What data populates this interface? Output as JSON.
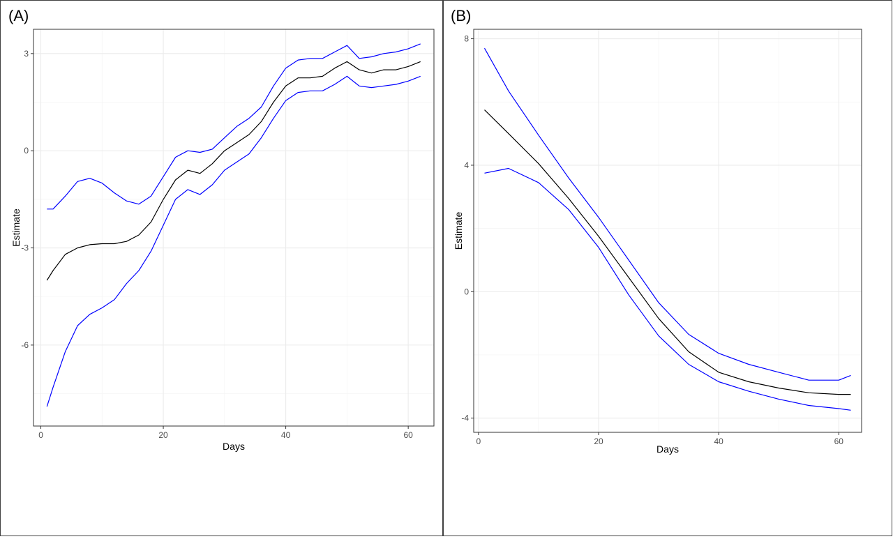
{
  "chart_data": [
    {
      "type": "line",
      "panel_label": "(A)",
      "xlabel": "Days",
      "ylabel": "Estimate",
      "xlim": [
        -1.2,
        64.2
      ],
      "ylim": [
        -8.5,
        3.75
      ],
      "x_ticks": [
        0,
        20,
        40,
        60
      ],
      "y_ticks": [
        -6,
        -3,
        0,
        3
      ],
      "grid": true,
      "series": [
        {
          "role": "estimate",
          "color": "#000000",
          "x": [
            1,
            2,
            4,
            6,
            8,
            10,
            12,
            14,
            16,
            18,
            20,
            22,
            24,
            26,
            28,
            30,
            32,
            34,
            36,
            38,
            40,
            42,
            44,
            46,
            48,
            50,
            52,
            54,
            56,
            58,
            60,
            62
          ],
          "y": [
            -4.0,
            -3.7,
            -3.2,
            -3.0,
            -2.9,
            -2.87,
            -2.87,
            -2.8,
            -2.6,
            -2.2,
            -1.5,
            -0.9,
            -0.6,
            -0.7,
            -0.4,
            0.0,
            0.25,
            0.5,
            0.9,
            1.5,
            2.0,
            2.25,
            2.25,
            2.3,
            2.55,
            2.75,
            2.5,
            2.4,
            2.5,
            2.5,
            2.6,
            2.75
          ]
        },
        {
          "role": "upper-bound",
          "color": "#0000ff",
          "x": [
            1,
            2,
            4,
            6,
            8,
            10,
            12,
            14,
            16,
            18,
            20,
            22,
            24,
            26,
            28,
            30,
            32,
            34,
            36,
            38,
            40,
            42,
            44,
            46,
            48,
            50,
            52,
            54,
            56,
            58,
            60,
            62
          ],
          "y": [
            -1.8,
            -1.8,
            -1.4,
            -0.95,
            -0.85,
            -1.0,
            -1.3,
            -1.55,
            -1.65,
            -1.4,
            -0.8,
            -0.2,
            0.0,
            -0.05,
            0.05,
            0.4,
            0.75,
            1.0,
            1.35,
            2.0,
            2.55,
            2.8,
            2.85,
            2.85,
            3.05,
            3.25,
            2.85,
            2.9,
            3.0,
            3.05,
            3.15,
            3.3
          ]
        },
        {
          "role": "lower-bound",
          "color": "#0000ff",
          "x": [
            1,
            2,
            4,
            6,
            8,
            10,
            12,
            14,
            16,
            18,
            20,
            22,
            24,
            26,
            28,
            30,
            32,
            34,
            36,
            38,
            40,
            42,
            44,
            46,
            48,
            50,
            52,
            54,
            56,
            58,
            60,
            62
          ],
          "y": [
            -7.9,
            -7.3,
            -6.2,
            -5.4,
            -5.05,
            -4.85,
            -4.6,
            -4.1,
            -3.7,
            -3.1,
            -2.3,
            -1.5,
            -1.2,
            -1.35,
            -1.05,
            -0.6,
            -0.35,
            -0.1,
            0.4,
            1.0,
            1.55,
            1.8,
            1.85,
            1.85,
            2.05,
            2.3,
            2.0,
            1.95,
            2.0,
            2.05,
            2.15,
            2.3
          ]
        }
      ]
    },
    {
      "type": "line",
      "panel_label": "(B)",
      "xlabel": "Days",
      "ylabel": "Estimate",
      "xlim": [
        -0.8,
        63.8
      ],
      "ylim": [
        -4.45,
        8.3
      ],
      "x_ticks": [
        0,
        20,
        40,
        60
      ],
      "y_ticks": [
        -4,
        0,
        4,
        8
      ],
      "grid": true,
      "series": [
        {
          "role": "estimate",
          "color": "#000000",
          "x": [
            1,
            5,
            10,
            15,
            20,
            25,
            30,
            35,
            40,
            45,
            50,
            55,
            60,
            62
          ],
          "y": [
            5.75,
            5.0,
            4.05,
            2.95,
            1.75,
            0.45,
            -0.85,
            -1.9,
            -2.55,
            -2.85,
            -3.05,
            -3.2,
            -3.25,
            -3.25
          ]
        },
        {
          "role": "upper-bound",
          "color": "#0000ff",
          "x": [
            1,
            5,
            10,
            15,
            20,
            25,
            30,
            35,
            40,
            45,
            50,
            55,
            60,
            62
          ],
          "y": [
            7.7,
            6.35,
            4.95,
            3.6,
            2.35,
            1.0,
            -0.35,
            -1.35,
            -1.95,
            -2.3,
            -2.55,
            -2.8,
            -2.8,
            -2.65
          ]
        },
        {
          "role": "lower-bound",
          "color": "#0000ff",
          "x": [
            1,
            5,
            10,
            15,
            20,
            25,
            30,
            35,
            40,
            45,
            50,
            55,
            60,
            62
          ],
          "y": [
            3.75,
            3.9,
            3.45,
            2.6,
            1.4,
            -0.1,
            -1.4,
            -2.3,
            -2.85,
            -3.15,
            -3.4,
            -3.6,
            -3.7,
            -3.75
          ]
        }
      ]
    }
  ]
}
